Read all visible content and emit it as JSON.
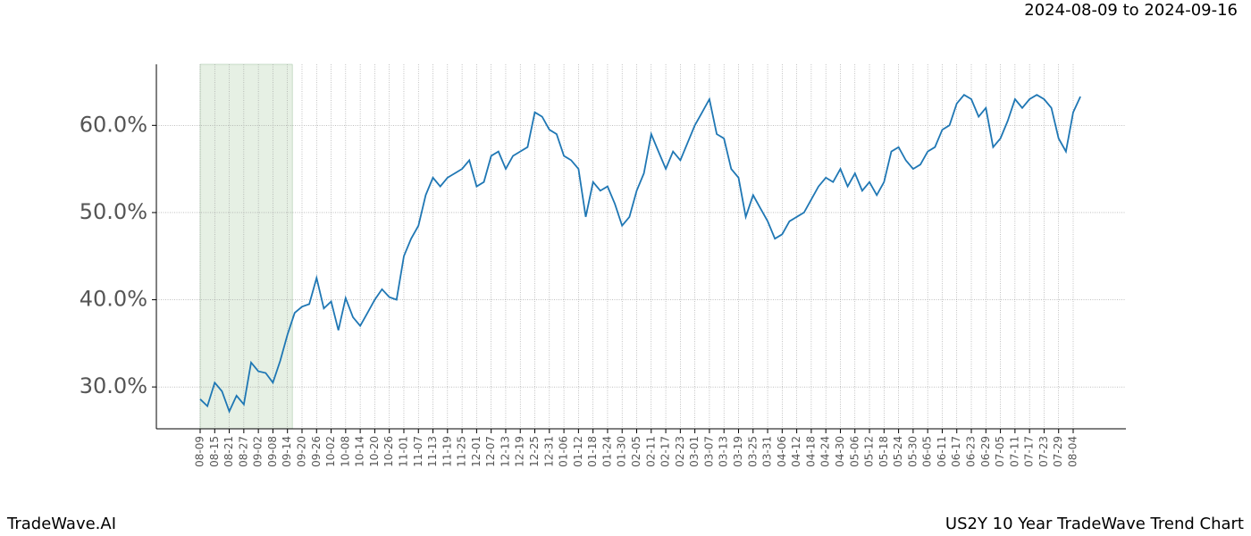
{
  "chart_data": {
    "type": "line",
    "title": "2024-08-09 to 2024-09-16",
    "footer_left": "TradeWave.AI",
    "footer_right": "US2Y 10 Year TradeWave Trend Chart",
    "shade": {
      "start": "08-09",
      "end": "09-16",
      "color": "#e6f0e4"
    },
    "grid": true,
    "ylim": [
      25.2,
      67
    ],
    "yticks": [
      {
        "value": 30,
        "label": "30.0%"
      },
      {
        "value": 40,
        "label": "40.0%"
      },
      {
        "value": 50,
        "label": "50.0%"
      },
      {
        "value": 60,
        "label": "60.0%"
      }
    ],
    "xticks": [
      "08-09",
      "08-15",
      "08-21",
      "08-27",
      "09-02",
      "09-08",
      "09-14",
      "09-20",
      "09-26",
      "10-02",
      "10-08",
      "10-14",
      "10-20",
      "10-26",
      "11-01",
      "11-07",
      "11-13",
      "11-19",
      "11-25",
      "12-01",
      "12-07",
      "12-13",
      "12-19",
      "12-25",
      "12-31",
      "01-06",
      "01-12",
      "01-18",
      "01-24",
      "01-30",
      "02-05",
      "02-11",
      "02-17",
      "02-23",
      "03-01",
      "03-07",
      "03-13",
      "03-19",
      "03-25",
      "03-31",
      "04-06",
      "04-12",
      "04-18",
      "04-24",
      "04-30",
      "05-06",
      "05-12",
      "05-18",
      "05-24",
      "05-30",
      "06-05",
      "06-11",
      "06-17",
      "06-23",
      "06-29",
      "07-05",
      "07-11",
      "07-17",
      "07-23",
      "07-29",
      "08-04"
    ],
    "x": [
      "08-09",
      "08-12",
      "08-15",
      "08-18",
      "08-21",
      "08-24",
      "08-27",
      "08-30",
      "09-02",
      "09-05",
      "09-08",
      "09-11",
      "09-14",
      "09-17",
      "09-20",
      "09-23",
      "09-26",
      "09-29",
      "10-02",
      "10-05",
      "10-08",
      "10-11",
      "10-14",
      "10-17",
      "10-20",
      "10-23",
      "10-26",
      "10-29",
      "11-01",
      "11-04",
      "11-07",
      "11-10",
      "11-13",
      "11-16",
      "11-19",
      "11-22",
      "11-25",
      "11-28",
      "12-01",
      "12-04",
      "12-07",
      "12-10",
      "12-13",
      "12-16",
      "12-19",
      "12-22",
      "12-25",
      "12-28",
      "12-31",
      "01-03",
      "01-06",
      "01-09",
      "01-12",
      "01-15",
      "01-18",
      "01-21",
      "01-24",
      "01-27",
      "01-30",
      "02-02",
      "02-05",
      "02-08",
      "02-11",
      "02-14",
      "02-17",
      "02-20",
      "02-23",
      "02-26",
      "03-01",
      "03-04",
      "03-07",
      "03-10",
      "03-13",
      "03-16",
      "03-19",
      "03-22",
      "03-25",
      "03-28",
      "03-31",
      "04-03",
      "04-06",
      "04-09",
      "04-12",
      "04-15",
      "04-18",
      "04-21",
      "04-24",
      "04-27",
      "04-30",
      "05-03",
      "05-06",
      "05-09",
      "05-12",
      "05-15",
      "05-18",
      "05-21",
      "05-24",
      "05-27",
      "05-30",
      "06-02",
      "06-05",
      "06-08",
      "06-11",
      "06-14",
      "06-17",
      "06-20",
      "06-23",
      "06-26",
      "06-29",
      "07-02",
      "07-05",
      "07-08",
      "07-11",
      "07-14",
      "07-17",
      "07-20",
      "07-23",
      "07-26",
      "07-29",
      "08-01",
      "08-04",
      "08-07"
    ],
    "series": [
      {
        "name": "US2Y",
        "color": "#1f77b4",
        "values": [
          28.6,
          27.8,
          30.5,
          29.5,
          27.2,
          29.0,
          28.0,
          32.8,
          31.8,
          31.6,
          30.5,
          33.0,
          36.0,
          38.5,
          39.2,
          39.5,
          42.5,
          39.0,
          39.8,
          36.5,
          40.2,
          38.0,
          37.0,
          38.5,
          40.0,
          41.2,
          40.3,
          40.0,
          45.0,
          47.0,
          48.5,
          52.0,
          54.0,
          53.0,
          54.0,
          54.5,
          55.0,
          56.0,
          53.0,
          53.5,
          56.5,
          57.0,
          55.0,
          56.5,
          57.0,
          57.5,
          61.5,
          61.0,
          59.5,
          59.0,
          56.5,
          56.0,
          55.0,
          49.5,
          53.5,
          52.5,
          53.0,
          51.0,
          48.5,
          49.5,
          52.5,
          54.5,
          59.0,
          57.0,
          55.0,
          57.0,
          56.0,
          58.0,
          60.0,
          61.5,
          63.0,
          59.0,
          58.5,
          55.0,
          54.0,
          49.5,
          52.0,
          50.5,
          49.0,
          47.0,
          47.5,
          49.0,
          49.5,
          50.0,
          51.5,
          53.0,
          54.0,
          53.5,
          55.0,
          53.0,
          54.5,
          52.5,
          53.5,
          52.0,
          53.5,
          57.0,
          57.5,
          56.0,
          55.0,
          55.5,
          57.0,
          57.5,
          59.5,
          60.0,
          62.5,
          63.5,
          63.0,
          61.0,
          62.0,
          57.5,
          58.5,
          60.5,
          63.0,
          62.0,
          63.0,
          63.5,
          63.0,
          62.0,
          58.5,
          57.0,
          61.5,
          63.3
        ]
      }
    ]
  }
}
